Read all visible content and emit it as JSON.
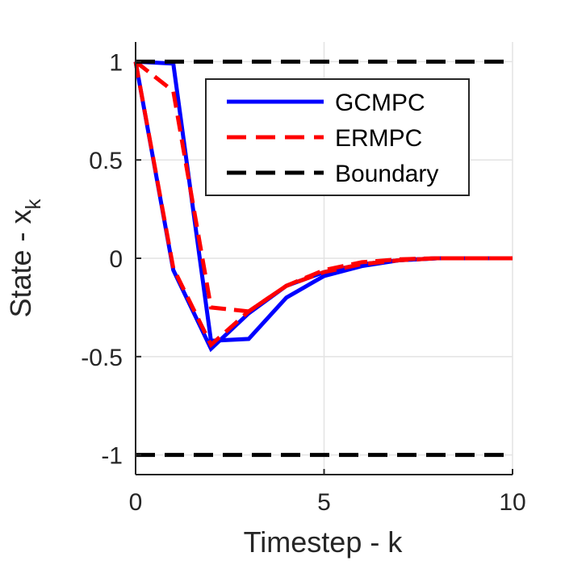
{
  "chart_data": {
    "type": "line",
    "xlabel": "Timestep - k",
    "ylabel_main": "State - x",
    "ylabel_sub": "k",
    "xlim": [
      0,
      10
    ],
    "ylim": [
      -1.1,
      1.1
    ],
    "xticks": [
      0,
      5,
      10
    ],
    "xtick_labels": [
      "0",
      "5",
      "10"
    ],
    "yticks": [
      -1,
      -0.5,
      0,
      0.5,
      1
    ],
    "ytick_labels": [
      "-1",
      "-0.5",
      "0",
      "0.5",
      "1"
    ],
    "grid": true,
    "legend_position": "top-right",
    "legend": [
      {
        "name": "GCMPC",
        "color": "#0000ff",
        "style": "solid"
      },
      {
        "name": "ERMPC",
        "color": "#ff0000",
        "style": "dashed"
      },
      {
        "name": "Boundary",
        "color": "#000000",
        "style": "dashed"
      }
    ],
    "series": [
      {
        "legend": 0,
        "color": "#0000ff",
        "style": "solid",
        "x": [
          0,
          1,
          2,
          3,
          4,
          5,
          6,
          7,
          8,
          9,
          10
        ],
        "y": [
          1.0,
          -0.06,
          -0.46,
          -0.28,
          -0.14,
          -0.07,
          -0.03,
          -0.01,
          0.0,
          0.0,
          0.0
        ]
      },
      {
        "legend": 0,
        "color": "#0000ff",
        "style": "solid",
        "x": [
          0,
          1,
          2,
          3,
          4,
          5,
          6,
          7,
          8,
          9,
          10
        ],
        "y": [
          1.0,
          0.99,
          -0.42,
          -0.41,
          -0.2,
          -0.09,
          -0.04,
          -0.01,
          0.0,
          0.0,
          0.0
        ]
      },
      {
        "legend": 1,
        "color": "#ff0000",
        "style": "dashed",
        "x": [
          0,
          1,
          2,
          3,
          4,
          5,
          6,
          7,
          8,
          9,
          10
        ],
        "y": [
          1.0,
          -0.05,
          -0.44,
          -0.27,
          -0.14,
          -0.06,
          -0.02,
          -0.005,
          0.0,
          0.0,
          0.0
        ]
      },
      {
        "legend": 1,
        "color": "#ff0000",
        "style": "dashed",
        "x": [
          0,
          1,
          2,
          3,
          4,
          5,
          6,
          7,
          8,
          9,
          10
        ],
        "y": [
          1.0,
          0.85,
          -0.25,
          -0.27,
          -0.14,
          -0.07,
          -0.03,
          -0.01,
          0.0,
          0.0,
          0.0
        ]
      },
      {
        "legend": 2,
        "color": "#000000",
        "style": "dashed",
        "x": [
          0,
          10
        ],
        "y": [
          1,
          1
        ]
      },
      {
        "legend": 2,
        "color": "#000000",
        "style": "dashed",
        "x": [
          0,
          10
        ],
        "y": [
          -1,
          -1
        ]
      }
    ]
  }
}
